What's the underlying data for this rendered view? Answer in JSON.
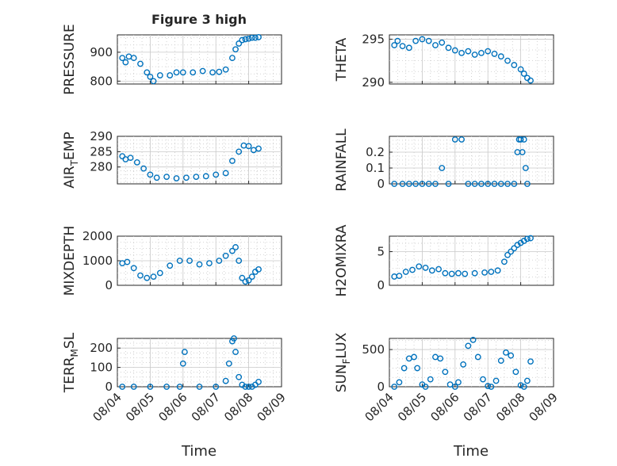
{
  "title": "Figure 3 high",
  "xlabel": "Time",
  "x_ticks": [
    "08/04",
    "08/05",
    "08/06",
    "08/07",
    "08/08",
    "08/09"
  ],
  "marker_color": "#0072BD",
  "chart_data": [
    {
      "type": "scatter",
      "ylabel": "PRESSURE",
      "ylim": [
        790,
        960
      ],
      "yticks": [
        800,
        900
      ],
      "ytick_labels": [
        "800",
        "900"
      ],
      "xlim": [
        0,
        5
      ],
      "x": [
        0.15,
        0.25,
        0.35,
        0.5,
        0.7,
        0.9,
        1.0,
        1.1,
        1.3,
        1.6,
        1.8,
        2.0,
        2.3,
        2.6,
        2.9,
        3.1,
        3.3,
        3.5,
        3.6,
        3.7,
        3.8,
        3.9,
        4.0,
        4.1,
        4.2,
        4.3
      ],
      "y": [
        880,
        865,
        885,
        880,
        860,
        830,
        815,
        800,
        820,
        820,
        830,
        830,
        830,
        835,
        830,
        832,
        840,
        880,
        910,
        930,
        942,
        945,
        947,
        950,
        950,
        952
      ]
    },
    {
      "type": "scatter",
      "ylabel": "THETA",
      "ylim": [
        289.8,
        295.5
      ],
      "yticks": [
        290,
        295
      ],
      "ytick_labels": [
        "290",
        "295"
      ],
      "xlim": [
        0,
        5
      ],
      "x": [
        0.15,
        0.25,
        0.4,
        0.6,
        0.8,
        1.0,
        1.2,
        1.4,
        1.6,
        1.8,
        2.0,
        2.2,
        2.4,
        2.6,
        2.8,
        3.0,
        3.2,
        3.4,
        3.6,
        3.8,
        4.0,
        4.1,
        4.2,
        4.3
      ],
      "y": [
        294.3,
        294.8,
        294.2,
        294.0,
        294.8,
        295.0,
        294.8,
        294.3,
        294.6,
        294.0,
        293.7,
        293.4,
        293.6,
        293.2,
        293.4,
        293.6,
        293.3,
        293.0,
        292.5,
        292.0,
        291.5,
        291.0,
        290.5,
        290.2
      ]
    },
    {
      "type": "scatter",
      "ylabel": "AIR_TEMP",
      "ylim": [
        274.5,
        290
      ],
      "yticks": [
        280,
        285,
        290
      ],
      "ytick_labels": [
        "280",
        "285",
        "290"
      ],
      "xlim": [
        0,
        5
      ],
      "x": [
        0.15,
        0.25,
        0.4,
        0.6,
        0.8,
        1.0,
        1.2,
        1.5,
        1.8,
        2.1,
        2.4,
        2.7,
        3.0,
        3.3,
        3.5,
        3.7,
        3.85,
        4.0,
        4.15,
        4.3
      ],
      "y": [
        283.5,
        282.5,
        283.0,
        281.5,
        279.5,
        277.5,
        276.5,
        276.8,
        276.3,
        276.5,
        276.8,
        277.0,
        277.5,
        278.0,
        282.0,
        285.0,
        287.0,
        286.8,
        285.5,
        286.0
      ]
    },
    {
      "type": "scatter",
      "ylabel": "RAINFALL",
      "ylim": [
        0,
        0.3
      ],
      "yticks": [
        0,
        0.1,
        0.2
      ],
      "ytick_labels": [
        "0",
        "0.1",
        "0.2"
      ],
      "xlim": [
        0,
        5
      ],
      "x": [
        0.15,
        0.4,
        0.6,
        0.8,
        1.0,
        1.2,
        1.4,
        1.6,
        1.8,
        2.0,
        2.2,
        2.4,
        2.6,
        2.8,
        3.0,
        3.2,
        3.4,
        3.6,
        3.8,
        3.9,
        3.95,
        4.0,
        4.05,
        4.1,
        4.15,
        4.2
      ],
      "y": [
        0,
        0,
        0,
        0,
        0,
        0,
        0,
        0.1,
        0,
        0.28,
        0.28,
        0,
        0,
        0,
        0,
        0,
        0,
        0,
        0,
        0.2,
        0.28,
        0.28,
        0.2,
        0.28,
        0.1,
        0
      ]
    },
    {
      "type": "scatter",
      "ylabel": "MIXDEPTH",
      "ylim": [
        0,
        2000
      ],
      "yticks": [
        0,
        1000,
        2000
      ],
      "ytick_labels": [
        "0",
        "1000",
        "2000"
      ],
      "xlim": [
        0,
        5
      ],
      "x": [
        0.15,
        0.3,
        0.5,
        0.7,
        0.9,
        1.1,
        1.3,
        1.6,
        1.9,
        2.2,
        2.5,
        2.8,
        3.1,
        3.3,
        3.5,
        3.6,
        3.7,
        3.8,
        3.9,
        4.0,
        4.1,
        4.2,
        4.3
      ],
      "y": [
        900,
        950,
        700,
        400,
        300,
        350,
        500,
        800,
        1000,
        1000,
        850,
        900,
        1000,
        1200,
        1400,
        1550,
        1000,
        300,
        150,
        200,
        350,
        550,
        650
      ]
    },
    {
      "type": "scatter",
      "ylabel": "H2OMIXRA",
      "ylim": [
        0,
        7.3
      ],
      "yticks": [
        0,
        5
      ],
      "ytick_labels": [
        "0",
        "5"
      ],
      "xlim": [
        0,
        5
      ],
      "x": [
        0.15,
        0.3,
        0.5,
        0.7,
        0.9,
        1.1,
        1.3,
        1.5,
        1.7,
        1.9,
        2.1,
        2.3,
        2.6,
        2.9,
        3.1,
        3.3,
        3.5,
        3.6,
        3.7,
        3.8,
        3.9,
        4.0,
        4.1,
        4.2,
        4.3
      ],
      "y": [
        1.3,
        1.4,
        2.0,
        2.3,
        2.8,
        2.6,
        2.2,
        2.4,
        1.8,
        1.7,
        1.8,
        1.7,
        1.8,
        1.9,
        2.0,
        2.2,
        3.5,
        4.5,
        5.0,
        5.5,
        6.0,
        6.3,
        6.6,
        6.9,
        7.0
      ]
    },
    {
      "type": "scatter",
      "ylabel": "TERR_MSL",
      "ylim": [
        0,
        250
      ],
      "yticks": [
        0,
        100,
        200
      ],
      "ytick_labels": [
        "0",
        "100",
        "200"
      ],
      "xlim": [
        0,
        5
      ],
      "x": [
        0.15,
        0.5,
        1.0,
        1.5,
        1.9,
        2.0,
        2.05,
        2.5,
        3.0,
        3.3,
        3.4,
        3.5,
        3.55,
        3.6,
        3.7,
        3.8,
        3.9,
        4.0,
        4.1,
        4.2,
        4.3
      ],
      "y": [
        0,
        0,
        0,
        0,
        0,
        120,
        180,
        0,
        0,
        30,
        120,
        235,
        250,
        180,
        50,
        10,
        0,
        0,
        0,
        10,
        25
      ]
    },
    {
      "type": "scatter",
      "ylabel": "SUN_FLUX",
      "ylim": [
        0,
        650
      ],
      "yticks": [
        0,
        500
      ],
      "ytick_labels": [
        "0",
        "500"
      ],
      "xlim": [
        0,
        5
      ],
      "x": [
        0.15,
        0.3,
        0.45,
        0.6,
        0.75,
        0.85,
        1.0,
        1.1,
        1.25,
        1.4,
        1.55,
        1.7,
        1.85,
        2.0,
        2.1,
        2.25,
        2.4,
        2.55,
        2.7,
        2.85,
        3.0,
        3.1,
        3.25,
        3.4,
        3.55,
        3.7,
        3.85,
        4.0,
        4.1,
        4.2,
        4.3
      ],
      "y": [
        0,
        60,
        250,
        380,
        400,
        250,
        30,
        0,
        100,
        400,
        380,
        200,
        30,
        0,
        60,
        300,
        550,
        630,
        400,
        100,
        10,
        0,
        80,
        350,
        460,
        420,
        200,
        20,
        0,
        80,
        340
      ]
    }
  ]
}
